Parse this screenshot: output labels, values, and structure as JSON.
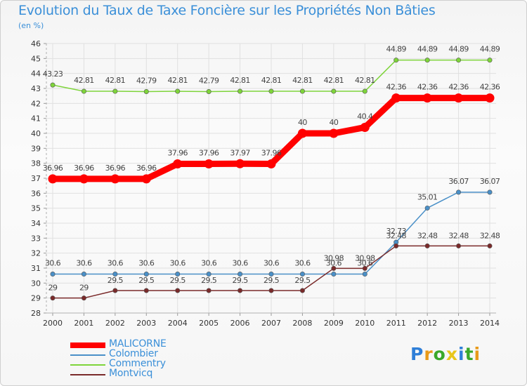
{
  "header": {
    "title": "Evolution du Taux de Taxe Foncière sur les Propriétés Non Bâties",
    "subtitle": "(en %)"
  },
  "chart_data": {
    "type": "line",
    "title": "Evolution du Taux de Taxe Foncière sur les Propriétés Non Bâties",
    "ylabel": "(en %)",
    "xlabel": "",
    "ylim": [
      28,
      46
    ],
    "yticks": [
      28,
      29,
      30,
      31,
      32,
      33,
      34,
      35,
      36,
      37,
      38,
      39,
      40,
      41,
      42,
      43,
      44,
      45,
      46
    ],
    "x": [
      "2000",
      "2001",
      "2002",
      "2003",
      "2004",
      "2005",
      "2006",
      "2007",
      "2008",
      "2009",
      "2010",
      "2011",
      "2012",
      "2013",
      "2014"
    ],
    "grid": true,
    "legend_position": "bottom-left",
    "series": [
      {
        "name": "MALICORNE",
        "color": "#ff0000",
        "values": [
          36.96,
          36.96,
          36.96,
          36.96,
          37.96,
          37.96,
          37.97,
          37.96,
          40,
          40,
          40.4,
          42.36,
          42.36,
          42.36,
          42.36
        ],
        "labels": [
          "36.96",
          "36.96",
          "36.96",
          "36.96",
          "37.96",
          "37.96",
          "37.97",
          "37.96",
          "40",
          "40",
          "40.4",
          "42.36",
          "42.36",
          "42.36",
          "42.36"
        ]
      },
      {
        "name": "Colombier",
        "color": "#4a90c8",
        "values": [
          30.6,
          30.6,
          30.6,
          30.6,
          30.6,
          30.6,
          30.6,
          30.6,
          30.6,
          30.6,
          30.6,
          32.73,
          35.01,
          36.07,
          36.07
        ],
        "labels": [
          "30.6",
          "30.6",
          "30.6",
          "30.6",
          "30.6",
          "30.6",
          "30.6",
          "30.6",
          "30.6",
          "30.6",
          "30.6",
          "32.73",
          "35.01",
          "36.07",
          "36.07"
        ]
      },
      {
        "name": "Commentry",
        "color": "#7ed43a",
        "values": [
          43.23,
          42.81,
          42.81,
          42.79,
          42.81,
          42.79,
          42.81,
          42.81,
          42.81,
          42.81,
          42.81,
          44.89,
          44.89,
          44.89,
          44.89
        ],
        "labels": [
          "43.23",
          "42.81",
          "42.81",
          "42.79",
          "42.81",
          "42.79",
          "42.81",
          "42.81",
          "42.81",
          "42.81",
          "42.81",
          "44.89",
          "44.89",
          "44.89",
          "44.89"
        ]
      },
      {
        "name": "Montvicq",
        "color": "#7a2a2a",
        "values": [
          29,
          29,
          29.5,
          29.5,
          29.5,
          29.5,
          29.5,
          29.5,
          29.5,
          30.98,
          30.98,
          32.48,
          32.48,
          32.48,
          32.48
        ],
        "labels": [
          "29",
          "29",
          "29.5",
          "29.5",
          "29.5",
          "29.5",
          "29.5",
          "29.5",
          "29.5",
          "30.98",
          "30.98",
          "32.48",
          "32.48",
          "32.48",
          "32.48"
        ]
      }
    ]
  },
  "logo": {
    "letters": [
      "P",
      "r",
      "o",
      "x",
      "i",
      "t",
      "i"
    ],
    "colors": [
      "#2f7fd8",
      "#e89a1a",
      "#3aa82a",
      "#e8c61a",
      "#2f7fd8",
      "#3aa82a",
      "#e89a1a"
    ]
  }
}
